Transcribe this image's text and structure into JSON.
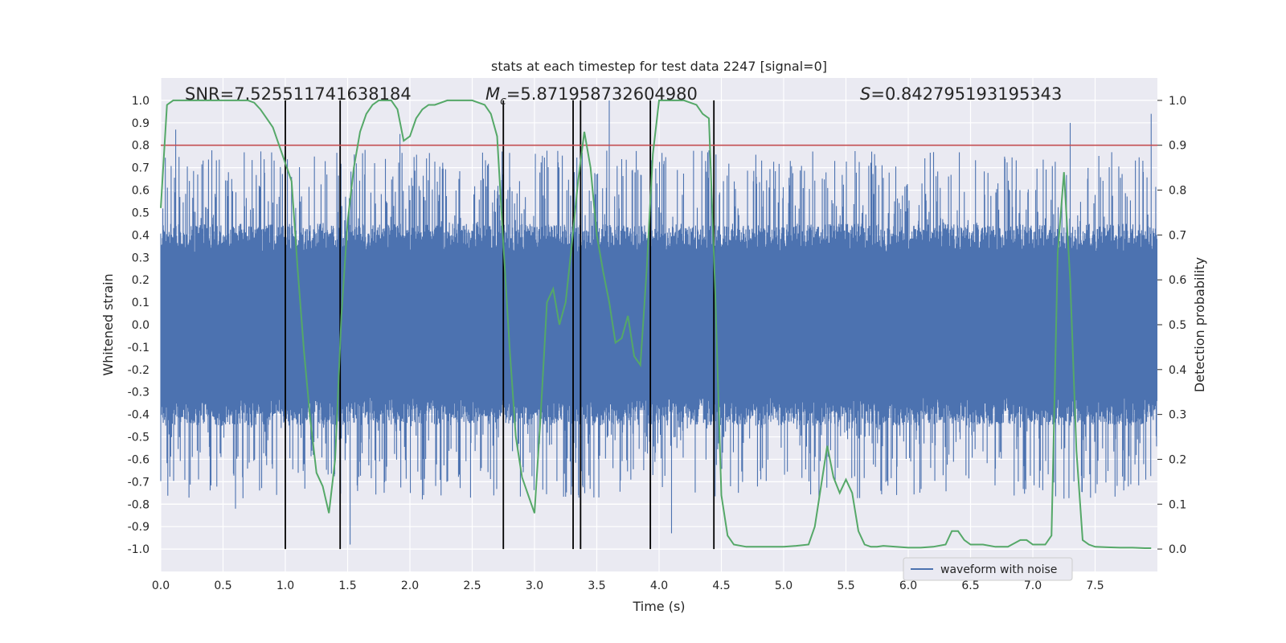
{
  "chart_data": {
    "type": "line",
    "title": "stats at each timestep for test data 2247 [signal=0]",
    "xlabel": "Time (s)",
    "ylabel": "Whitened strain",
    "y2label": "Detection probability",
    "xlim": [
      0.0,
      8.0
    ],
    "ylim": [
      -1.1,
      1.1
    ],
    "y2lim": [
      -0.05,
      1.05
    ],
    "x_ticks": [
      "0.0",
      "0.5",
      "1.0",
      "1.5",
      "2.0",
      "2.5",
      "3.0",
      "3.5",
      "4.0",
      "4.5",
      "5.0",
      "5.5",
      "6.0",
      "6.5",
      "7.0",
      "7.5"
    ],
    "y_ticks": [
      "1.0",
      "0.9",
      "0.8",
      "0.7",
      "0.6",
      "0.5",
      "0.4",
      "0.3",
      "0.2",
      "0.1",
      "0.0",
      "-0.1",
      "-0.2",
      "-0.3",
      "-0.4",
      "-0.5",
      "-0.6",
      "-0.7",
      "-0.8",
      "-0.9",
      "-1.0"
    ],
    "y2_ticks": [
      "1.0",
      "0.9",
      "0.8",
      "0.7",
      "0.6",
      "0.5",
      "0.4",
      "0.3",
      "0.2",
      "0.1",
      "0.0"
    ],
    "grid": true,
    "legend_position": "bottom-right",
    "annotations": {
      "snr": "SNR=7.525511741638184",
      "mc_symbol": "M",
      "mc_sub": "c",
      "mc_value": "=5.871958732604980",
      "s_symbol": "S",
      "s_value": "=0.842795193195343"
    },
    "threshold_prob": 0.9,
    "vertical_lines_x": [
      1.0,
      1.44,
      2.75,
      3.31,
      3.37,
      3.93,
      4.44
    ],
    "waveform": {
      "name": "waveform with noise",
      "color": "#4c72b0",
      "x_range": [
        0.0,
        8.0
      ],
      "core_amplitude": 0.45,
      "peak_amplitude": 1.0,
      "notable_peaks": [
        {
          "x": 0.12,
          "y": 0.87
        },
        {
          "x": 1.92,
          "y": 0.85
        },
        {
          "x": 3.6,
          "y": 1.0
        },
        {
          "x": 7.3,
          "y": 0.9
        },
        {
          "x": 7.95,
          "y": 0.94
        },
        {
          "x": 0.6,
          "y": -0.82
        },
        {
          "x": 1.52,
          "y": -0.98
        },
        {
          "x": 4.1,
          "y": -0.93
        }
      ]
    },
    "detection_probability": {
      "color": "#55a868",
      "x": [
        0.0,
        0.05,
        0.1,
        0.15,
        0.2,
        0.3,
        0.4,
        0.5,
        0.6,
        0.7,
        0.75,
        0.8,
        0.85,
        0.9,
        0.95,
        1.0,
        1.05,
        1.1,
        1.15,
        1.2,
        1.25,
        1.3,
        1.35,
        1.4,
        1.45,
        1.5,
        1.55,
        1.6,
        1.65,
        1.7,
        1.75,
        1.8,
        1.85,
        1.9,
        1.95,
        2.0,
        2.05,
        2.1,
        2.15,
        2.2,
        2.3,
        2.4,
        2.5,
        2.6,
        2.65,
        2.7,
        2.75,
        2.8,
        2.85,
        2.9,
        2.95,
        3.0,
        3.05,
        3.1,
        3.15,
        3.2,
        3.25,
        3.3,
        3.35,
        3.4,
        3.45,
        3.5,
        3.55,
        3.6,
        3.65,
        3.7,
        3.75,
        3.8,
        3.85,
        3.9,
        3.95,
        4.0,
        4.05,
        4.1,
        4.15,
        4.2,
        4.3,
        4.35,
        4.4,
        4.45,
        4.5,
        4.55,
        4.6,
        4.7,
        4.8,
        4.9,
        5.0,
        5.1,
        5.2,
        5.25,
        5.3,
        5.35,
        5.4,
        5.45,
        5.5,
        5.55,
        5.6,
        5.65,
        5.7,
        5.75,
        5.8,
        5.9,
        6.0,
        6.1,
        6.2,
        6.3,
        6.35,
        6.4,
        6.45,
        6.5,
        6.6,
        6.7,
        6.8,
        6.9,
        6.95,
        7.0,
        7.05,
        7.1,
        7.15,
        7.2,
        7.25,
        7.3,
        7.35,
        7.4,
        7.45,
        7.5,
        7.6,
        7.7,
        7.8,
        7.9,
        7.95
      ],
      "y": [
        0.76,
        0.99,
        1.0,
        1.0,
        1.0,
        1.0,
        1.0,
        1.0,
        1.0,
        1.0,
        0.995,
        0.98,
        0.96,
        0.94,
        0.9,
        0.86,
        0.82,
        0.62,
        0.44,
        0.29,
        0.17,
        0.14,
        0.08,
        0.2,
        0.52,
        0.73,
        0.85,
        0.93,
        0.97,
        0.99,
        1.0,
        1.0,
        1.0,
        0.98,
        0.91,
        0.92,
        0.96,
        0.98,
        0.99,
        0.99,
        1.0,
        1.0,
        1.0,
        0.99,
        0.97,
        0.92,
        0.68,
        0.45,
        0.25,
        0.16,
        0.12,
        0.08,
        0.3,
        0.55,
        0.58,
        0.5,
        0.55,
        0.68,
        0.82,
        0.93,
        0.85,
        0.7,
        0.62,
        0.55,
        0.46,
        0.47,
        0.52,
        0.43,
        0.41,
        0.62,
        0.88,
        1.0,
        1.0,
        1.0,
        1.0,
        1.0,
        0.99,
        0.97,
        0.96,
        0.58,
        0.12,
        0.03,
        0.01,
        0.005,
        0.005,
        0.005,
        0.005,
        0.007,
        0.01,
        0.05,
        0.14,
        0.23,
        0.16,
        0.125,
        0.155,
        0.125,
        0.04,
        0.01,
        0.005,
        0.005,
        0.007,
        0.005,
        0.003,
        0.003,
        0.005,
        0.01,
        0.04,
        0.04,
        0.02,
        0.01,
        0.01,
        0.005,
        0.005,
        0.02,
        0.02,
        0.01,
        0.01,
        0.01,
        0.03,
        0.66,
        0.84,
        0.6,
        0.22,
        0.02,
        0.01,
        0.005,
        0.004,
        0.003,
        0.003,
        0.002,
        0.002
      ]
    },
    "threshold_color": "#c44e52",
    "vline_color": "#000000"
  }
}
